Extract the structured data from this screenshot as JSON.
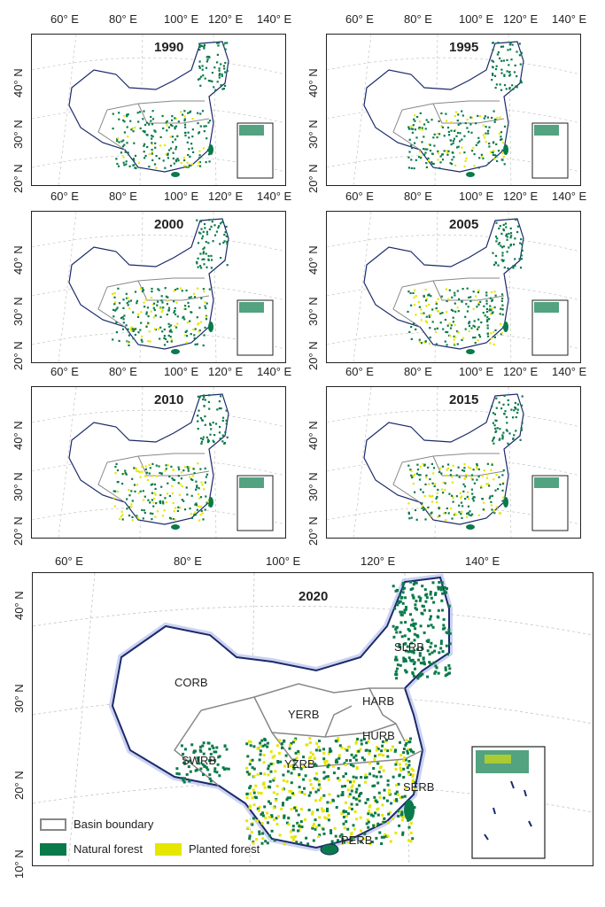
{
  "small_panels": [
    {
      "year": "1990"
    },
    {
      "year": "1995"
    },
    {
      "year": "2000"
    },
    {
      "year": "2005"
    },
    {
      "year": "2010"
    },
    {
      "year": "2015"
    }
  ],
  "lon_labels_small": [
    "60° E",
    "80° E",
    "100° E",
    "120° E",
    "140° E"
  ],
  "lat_labels_small": [
    "40° N",
    "30° N",
    "20° N"
  ],
  "big_panel": {
    "year": "2020",
    "lon_labels": [
      "60° E",
      "80° E",
      "100° E",
      "120° E",
      "140° E"
    ],
    "lat_labels": [
      "40° N",
      "30° N",
      "20° N",
      "10° N"
    ],
    "basins": [
      "SLRB",
      "CORB",
      "HARB",
      "YERB",
      "HURB",
      "SWRB",
      "YZRB",
      "SERB",
      "PERB"
    ]
  },
  "legend": {
    "basin_boundary": "Basin boundary",
    "natural_forest": "Natural forest",
    "planted_forest": "Planted forest"
  },
  "colors": {
    "natural": "#0a7a4a",
    "planted": "#e6e600",
    "boundary": "#888888",
    "outline": "#1b2a6b"
  }
}
